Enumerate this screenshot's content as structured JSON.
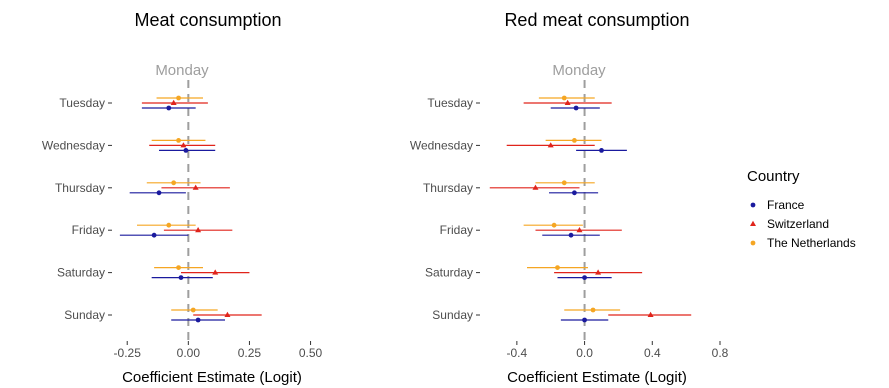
{
  "chart_data": [
    {
      "type": "scatter",
      "title": "Meat consumption",
      "xlabel": "Coefficient Estimate (Logit)",
      "ylabel": "",
      "reference_label": "Monday",
      "reference_x": 0,
      "xlim": [
        -0.3,
        0.6
      ],
      "xticks": [
        -0.25,
        0.0,
        0.25,
        0.5
      ],
      "xtick_labels": [
        "-0.25",
        "0.00",
        "0.25",
        "0.50"
      ],
      "categories": [
        "Tuesday",
        "Wednesday",
        "Thursday",
        "Friday",
        "Saturday",
        "Sunday"
      ],
      "series": [
        {
          "name": "The Netherlands",
          "color": "#f5a623",
          "marker": "circle",
          "estimates": [
            -0.04,
            -0.04,
            -0.06,
            -0.08,
            -0.04,
            0.02
          ],
          "ci_low": [
            -0.13,
            -0.15,
            -0.17,
            -0.21,
            -0.14,
            -0.07
          ],
          "ci_high": [
            0.06,
            0.07,
            0.05,
            0.03,
            0.06,
            0.12
          ]
        },
        {
          "name": "Switzerland",
          "color": "#e0241b",
          "marker": "triangle",
          "estimates": [
            -0.06,
            -0.02,
            0.03,
            0.04,
            0.11,
            0.16
          ],
          "ci_low": [
            -0.19,
            -0.16,
            -0.11,
            -0.1,
            -0.03,
            0.02
          ],
          "ci_high": [
            0.08,
            0.11,
            0.17,
            0.18,
            0.25,
            0.3
          ]
        },
        {
          "name": "France",
          "color": "#1a1a9e",
          "marker": "circle",
          "estimates": [
            -0.08,
            -0.01,
            -0.12,
            -0.14,
            -0.03,
            0.04
          ],
          "ci_low": [
            -0.19,
            -0.12,
            -0.24,
            -0.28,
            -0.15,
            -0.07
          ],
          "ci_high": [
            0.03,
            0.11,
            -0.01,
            0.0,
            0.1,
            0.15
          ]
        }
      ]
    },
    {
      "type": "scatter",
      "title": "Red meat consumption",
      "xlabel": "Coefficient Estimate (Logit)",
      "ylabel": "",
      "reference_label": "Monday",
      "reference_x": 0,
      "xlim": [
        -0.6,
        0.8
      ],
      "xticks": [
        -0.4,
        0.0,
        0.4,
        0.8
      ],
      "xtick_labels": [
        "-0.4",
        "0.0",
        "0.4",
        "0.8"
      ],
      "categories": [
        "Tuesday",
        "Wednesday",
        "Thursday",
        "Friday",
        "Saturday",
        "Sunday"
      ],
      "series": [
        {
          "name": "The Netherlands",
          "color": "#f5a623",
          "marker": "circle",
          "estimates": [
            -0.12,
            -0.06,
            -0.12,
            -0.18,
            -0.16,
            0.05
          ],
          "ci_low": [
            -0.27,
            -0.23,
            -0.29,
            -0.36,
            -0.34,
            -0.12
          ],
          "ci_high": [
            0.06,
            0.1,
            0.06,
            -0.01,
            0.02,
            0.21
          ]
        },
        {
          "name": "Switzerland",
          "color": "#e0241b",
          "marker": "triangle",
          "estimates": [
            -0.1,
            -0.2,
            -0.29,
            -0.03,
            0.08,
            0.39
          ],
          "ci_low": [
            -0.36,
            -0.46,
            -0.56,
            -0.29,
            -0.18,
            0.14
          ],
          "ci_high": [
            0.16,
            0.06,
            -0.03,
            0.22,
            0.34,
            0.63
          ]
        },
        {
          "name": "France",
          "color": "#1a1a9e",
          "marker": "circle",
          "estimates": [
            -0.05,
            0.1,
            -0.06,
            -0.08,
            0.0,
            0.0
          ],
          "ci_low": [
            -0.2,
            -0.05,
            -0.21,
            -0.25,
            -0.16,
            -0.14
          ],
          "ci_high": [
            0.09,
            0.25,
            0.08,
            0.09,
            0.16,
            0.14
          ]
        }
      ]
    }
  ],
  "legend": {
    "title": "Country",
    "placement": "right",
    "entries": [
      {
        "label": "France",
        "color": "#1a1a9e",
        "marker": "circle"
      },
      {
        "label": "Switzerland",
        "color": "#e0241b",
        "marker": "triangle"
      },
      {
        "label": "The Netherlands",
        "color": "#f5a623",
        "marker": "circle"
      }
    ]
  }
}
